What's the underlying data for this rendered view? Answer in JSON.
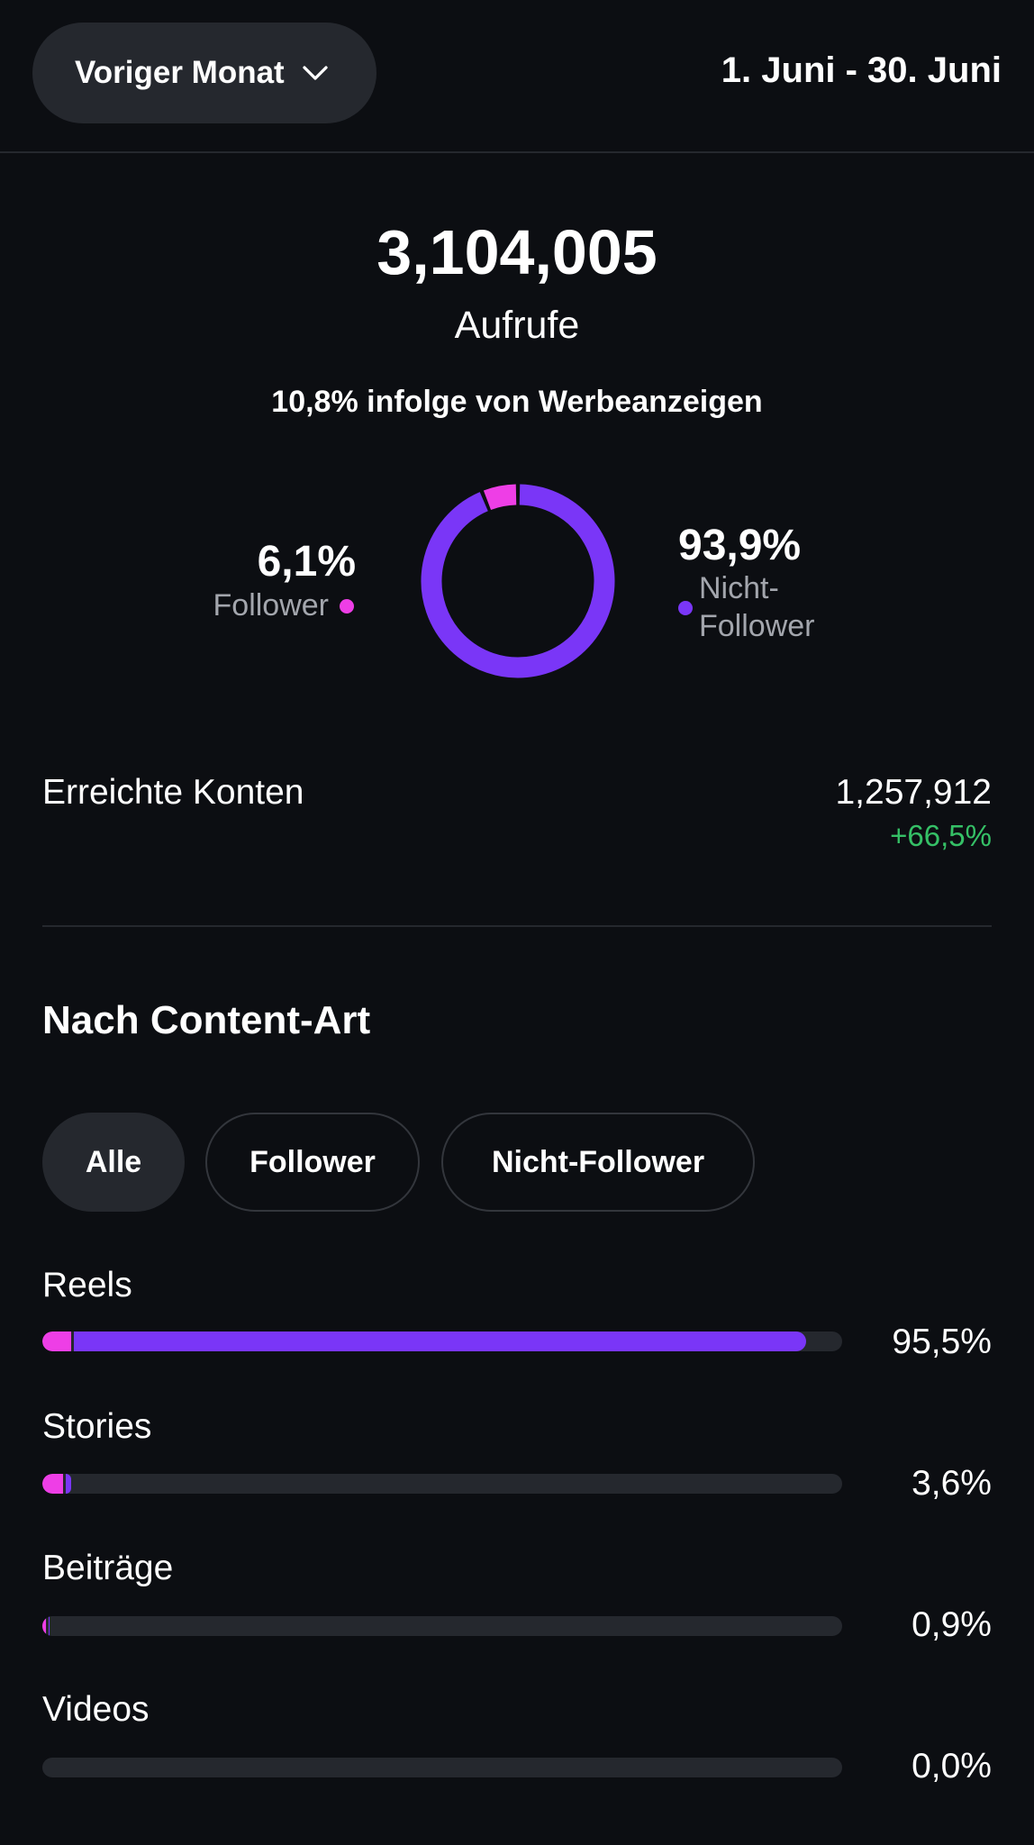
{
  "header": {
    "period_label": "Voriger Monat",
    "date_range": "1. Juni - 30. Juni"
  },
  "summary": {
    "total_value": "3,104,005",
    "total_label": "Aufrufe",
    "ads_note": "10,8% infolge von Werbeanzeigen"
  },
  "chart_data": {
    "type": "pie",
    "categories": [
      "Follower",
      "Nicht-Follower"
    ],
    "values": [
      6.1,
      93.9
    ],
    "labels": [
      "6,1%",
      "93,9%"
    ],
    "colors": [
      "#ee3ee6",
      "#7a36f7"
    ],
    "title": "",
    "legend": [
      "Follower",
      "Nicht-Follower"
    ]
  },
  "legend": {
    "follower_pct": "6,1%",
    "follower_label": "Follower",
    "nonfollower_pct": "93,9%",
    "nonfollower_label_line1": "Nicht-",
    "nonfollower_label_line2": "Follower"
  },
  "reach": {
    "label": "Erreichte Konten",
    "value": "1,257,912",
    "change": "+66,5%",
    "change_color": "#35c066"
  },
  "content_type": {
    "title": "Nach Content-Art",
    "chips": [
      {
        "label": "Alle",
        "active": true
      },
      {
        "label": "Follower",
        "active": false
      },
      {
        "label": "Nicht-Follower",
        "active": false
      }
    ],
    "rows": [
      {
        "label": "Reels",
        "pct_text": "95,5%",
        "follower_fraction": 0.036,
        "nonfollower_fraction": 0.919
      },
      {
        "label": "Stories",
        "pct_text": "3,6%",
        "follower_fraction": 0.026,
        "nonfollower_fraction": 0.01
      },
      {
        "label": "Beiträge",
        "pct_text": "0,9%",
        "follower_fraction": 0.005,
        "nonfollower_fraction": 0.004
      },
      {
        "label": "Videos",
        "pct_text": "0,0%",
        "follower_fraction": 0.0,
        "nonfollower_fraction": 0.0
      }
    ]
  },
  "colors": {
    "background": "#0c0e12",
    "follower": "#ee3ee6",
    "nonfollower": "#7a36f7",
    "track": "#25282e"
  }
}
